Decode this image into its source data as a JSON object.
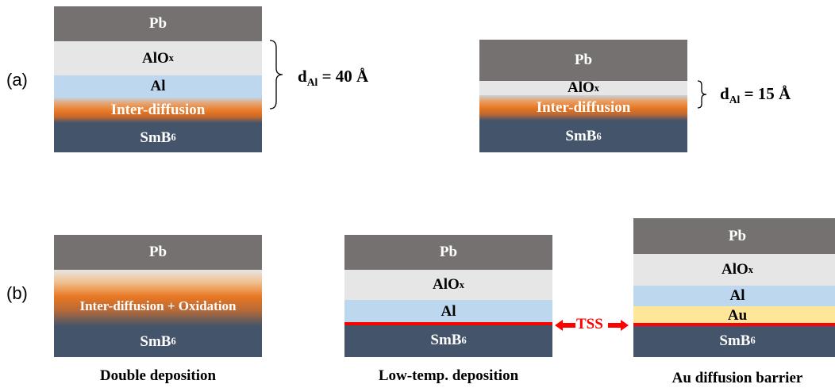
{
  "panel_a": {
    "label": "(a)",
    "left_stack": {
      "pb": "Pb",
      "alox_main": "AlO",
      "alox_sub": "x",
      "al": "Al",
      "interdiffusion": "Inter-diffusion",
      "smb_main": "SmB",
      "smb_sub": "6"
    },
    "left_thickness": {
      "prefix": "d",
      "sub": "Al",
      "value": " = 40 Å"
    },
    "right_stack": {
      "pb": "Pb",
      "alox_main": "AlO",
      "alox_sub": "x",
      "interdiffusion": "Inter-diffusion",
      "smb_main": "SmB",
      "smb_sub": "6"
    },
    "right_thickness": {
      "prefix": "d",
      "sub": "Al",
      "value": " = 15 Å"
    }
  },
  "panel_b": {
    "label": "(b)",
    "stack1": {
      "pb": "Pb",
      "interdiffusion": "Inter-diffusion + Oxidation",
      "smb_main": "SmB",
      "smb_sub": "6",
      "caption": "Double deposition"
    },
    "stack2": {
      "pb": "Pb",
      "alox_main": "AlO",
      "alox_sub": "x",
      "al": "Al",
      "smb_main": "SmB",
      "smb_sub": "6",
      "caption": "Low-temp. deposition"
    },
    "tss": "TSS",
    "stack3": {
      "pb": "Pb",
      "alox_main": "AlO",
      "alox_sub": "x",
      "al": "Al",
      "au": "Au",
      "smb_main": "SmB",
      "smb_sub": "6",
      "caption": "Au diffusion barrier"
    }
  },
  "colors": {
    "pb": "#767171",
    "alox": "#e7e6e6",
    "al": "#bdd7ee",
    "au": "#ffe699",
    "smb6": "#44546a",
    "interdiffusion": "#e87722",
    "tss": "#ff0000"
  }
}
